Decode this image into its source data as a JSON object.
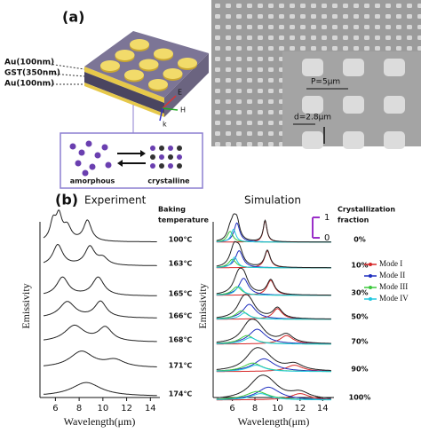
{
  "panel_a": {
    "label": "(a)",
    "layers": [
      "Au(100nm)",
      "GST(350nm)",
      "Au(100nm)"
    ],
    "axes": [
      "E",
      "H",
      "k"
    ],
    "phases": [
      "amorphous",
      "crystalline"
    ],
    "sem": {
      "period": "P=5μm",
      "diameter": "d=2.8μm"
    }
  },
  "panel_b": {
    "label": "(b)",
    "experiment": {
      "title": "Experiment",
      "legend_title": [
        "Baking",
        "temperature"
      ],
      "temperatures": [
        "100℃",
        "163℃",
        "165℃",
        "166℃",
        "168℃",
        "171℃",
        "174℃"
      ],
      "y_label": "Emissivity",
      "x_label": "Wavelength(μm)",
      "xlim": [
        4.7,
        14.8
      ],
      "xticks": [
        6,
        8,
        10,
        12,
        14
      ]
    },
    "simulation": {
      "title": "Simulation",
      "y_label": "Emissivity",
      "x_label": "Wavelength(μm)",
      "scale_title": [
        "Crystallization",
        "fraction"
      ],
      "scale_ticks": [
        1,
        0
      ],
      "fractions": [
        "0%",
        "10%",
        "30%",
        "50%",
        "70%",
        "90%",
        "100%"
      ],
      "modes": [
        {
          "name": "Mode I",
          "color": "#d62728"
        },
        {
          "name": "Mode II",
          "color": "#1f2fbf"
        },
        {
          "name": "Mode III",
          "color": "#3cc83c"
        },
        {
          "name": "Mode IV",
          "color": "#22c8e0"
        }
      ],
      "xlim": [
        4.3,
        15
      ],
      "xticks": [
        6,
        8,
        10,
        12,
        14
      ]
    }
  }
}
